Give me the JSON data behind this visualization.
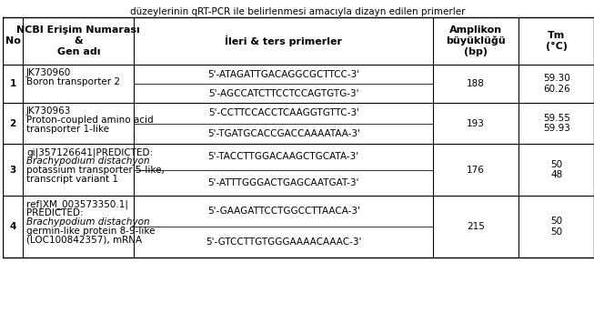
{
  "title": "düzeylerinin qRT-PCR ile belirlenmesi amacıyla dizayn edilen primerler",
  "col_headers": [
    "No",
    "NCBI Erişim Numarası\n&\nGen adı",
    "İleri & ters primerler",
    "Amplikon\nbüyüklüğü\n(bp)",
    "Tm\n(°C)"
  ],
  "rows": [
    {
      "no": "1",
      "ncbi": "JK730960\nBoron transporter 2",
      "ncbi_italic": false,
      "primers": [
        "5'-ATAGATTGACAGGCGCTTCC-3'",
        "5'-AGCCATCTTCCTCCAGTGTG-3'"
      ],
      "amplikon": "188",
      "tm": "59.30\n60.26"
    },
    {
      "no": "2",
      "ncbi": "JK730963\nProton-coupled amino acid\ntransporter 1-like",
      "ncbi_italic": false,
      "primers": [
        "5'-CCTTCCACCTCAAGGTGTTC-3'",
        "5'-TGATGCACCGACCAAAATAA-3'"
      ],
      "amplikon": "193",
      "tm": "59.55\n59.93"
    },
    {
      "no": "3",
      "ncbi": "gi|357126641|PREDICTED:\nBrachypodium distachyon\npotassium transporter 5-like,\ntranscript variant 1",
      "ncbi_italic": true,
      "primers": [
        "5'-TACCTTGGACAAGCTGCATA-3'",
        "5'-ATTTGGGACTGAGCAATGAT-3'"
      ],
      "amplikon": "176",
      "tm": "50\n48"
    },
    {
      "no": "4",
      "ncbi": "ref|XM_003573350.1|\nPREDICTED:\nBrachypodium distachyon\ngermin-like protein 8-9-like\n(LOC100842357), mRNA",
      "ncbi_italic": true,
      "primers": [
        "5'-GAAGATTCCTGGCCTTAACA-3'",
        "5'-GTCCTTGTGGGAAAACAAAC-3'"
      ],
      "amplikon": "215",
      "tm": "50\n50"
    }
  ],
  "background_color": "#ffffff",
  "border_color": "#000000",
  "text_color": "#000000",
  "font_size": 7.5,
  "header_font_size": 8
}
